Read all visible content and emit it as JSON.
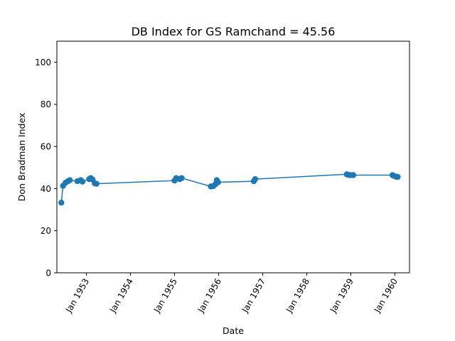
{
  "chart_data": {
    "type": "line",
    "title": "DB Index for GS Ramchand = 45.56",
    "xlabel": "Date",
    "ylabel": "Don Bradman Index",
    "ylim": [
      0,
      110
    ],
    "xlim": [
      "1952-05-01",
      "1960-05-01"
    ],
    "yticks": [
      0,
      20,
      40,
      60,
      80,
      100
    ],
    "xticks": [
      {
        "label": "Jan 1953",
        "date": "1953-01-01"
      },
      {
        "label": "Jan 1954",
        "date": "1954-01-01"
      },
      {
        "label": "Jan 1955",
        "date": "1955-01-01"
      },
      {
        "label": "Jan 1956",
        "date": "1956-01-01"
      },
      {
        "label": "Jan 1957",
        "date": "1957-01-01"
      },
      {
        "label": "Jan 1958",
        "date": "1958-01-01"
      },
      {
        "label": "Jan 1959",
        "date": "1959-01-01"
      },
      {
        "label": "Jan 1960",
        "date": "1960-01-01"
      }
    ],
    "grid": false,
    "series": [
      {
        "color": "#1f77b4",
        "points": [
          {
            "x": "1952-06-07",
            "y": 33.3
          },
          {
            "x": "1952-06-21",
            "y": 41.3
          },
          {
            "x": "1952-07-12",
            "y": 42.8
          },
          {
            "x": "1952-08-01",
            "y": 43.5
          },
          {
            "x": "1952-08-16",
            "y": 44.0
          },
          {
            "x": "1952-10-18",
            "y": 43.5
          },
          {
            "x": "1952-11-15",
            "y": 44.0
          },
          {
            "x": "1952-11-29",
            "y": 43.3
          },
          {
            "x": "1953-01-24",
            "y": 44.5
          },
          {
            "x": "1953-02-06",
            "y": 45.0
          },
          {
            "x": "1953-02-21",
            "y": 44.3
          },
          {
            "x": "1953-03-11",
            "y": 42.5
          },
          {
            "x": "1953-03-25",
            "y": 42.3
          },
          {
            "x": "1955-01-01",
            "y": 43.8
          },
          {
            "x": "1955-01-15",
            "y": 45.0
          },
          {
            "x": "1955-02-12",
            "y": 44.5
          },
          {
            "x": "1955-03-01",
            "y": 45.0
          },
          {
            "x": "1955-10-29",
            "y": 41.0
          },
          {
            "x": "1955-11-19",
            "y": 41.2
          },
          {
            "x": "1955-12-05",
            "y": 42.0
          },
          {
            "x": "1955-12-17",
            "y": 44.0
          },
          {
            "x": "1955-12-28",
            "y": 43.0
          },
          {
            "x": "1956-10-19",
            "y": 43.5
          },
          {
            "x": "1956-10-30",
            "y": 44.5
          },
          {
            "x": "1958-11-28",
            "y": 46.8
          },
          {
            "x": "1958-12-11",
            "y": 46.5
          },
          {
            "x": "1958-12-28",
            "y": 46.4
          },
          {
            "x": "1959-01-21",
            "y": 46.4
          },
          {
            "x": "1959-12-12",
            "y": 46.4
          },
          {
            "x": "1959-12-25",
            "y": 46.0
          },
          {
            "x": "1960-01-13",
            "y": 45.6
          },
          {
            "x": "1960-01-24",
            "y": 45.56
          }
        ]
      }
    ]
  }
}
